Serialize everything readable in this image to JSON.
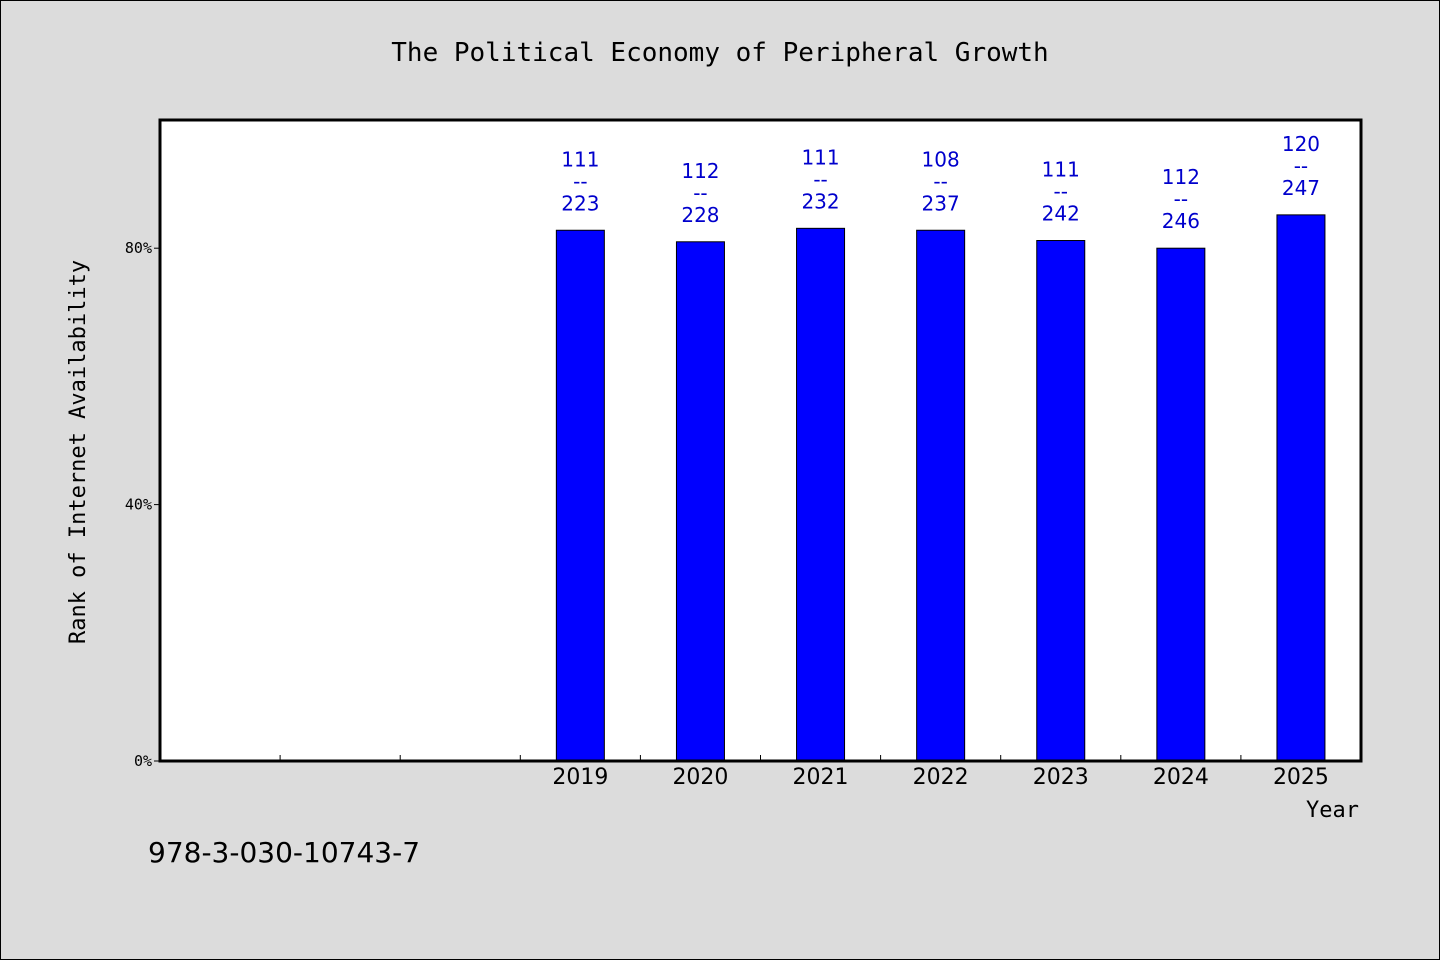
{
  "chart_data": {
    "type": "bar",
    "title": "The Political Economy of Peripheral Growth",
    "xlabel": "Year",
    "ylabel": "Rank of Internet Availability",
    "y_ticks": [
      "0%",
      "40%",
      "80%"
    ],
    "y_tick_values": [
      0,
      40,
      80
    ],
    "ylim": [
      0,
      100
    ],
    "categories": [
      "2019",
      "2020",
      "2021",
      "2022",
      "2023",
      "2024",
      "2025"
    ],
    "values": [
      82.8,
      81.0,
      83.1,
      82.8,
      81.2,
      80.0,
      85.2
    ],
    "data_labels": [
      {
        "top": "111",
        "sep": "--",
        "bottom": "223"
      },
      {
        "top": "112",
        "sep": "--",
        "bottom": "228"
      },
      {
        "top": "111",
        "sep": "--",
        "bottom": "232"
      },
      {
        "top": "108",
        "sep": "--",
        "bottom": "237"
      },
      {
        "top": "111",
        "sep": "--",
        "bottom": "242"
      },
      {
        "top": "112",
        "sep": "--",
        "bottom": "246"
      },
      {
        "top": "120",
        "sep": "--",
        "bottom": "247"
      }
    ],
    "bar_color": "#0000ff",
    "label_color": "#0000cc",
    "background": "#dcdcdc",
    "plot_background": "#ffffff",
    "grid": false,
    "legend": "none"
  },
  "footer": {
    "isbn": "978-3-030-10743-7"
  }
}
